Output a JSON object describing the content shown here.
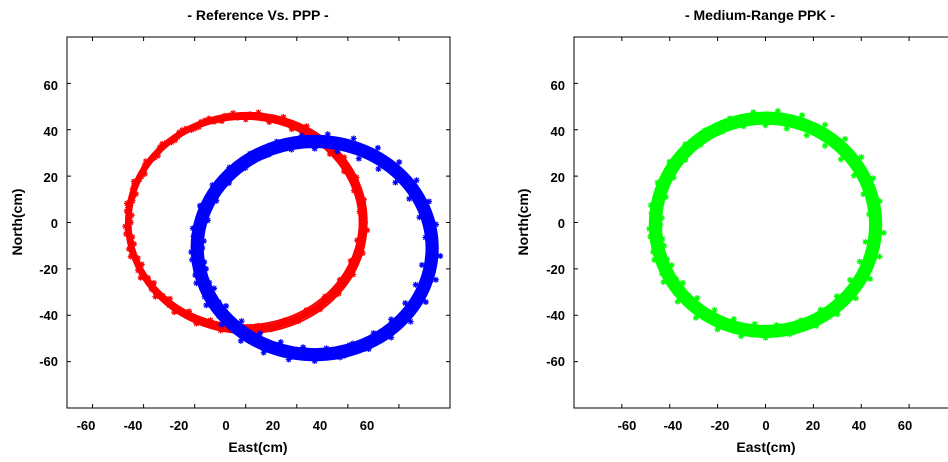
{
  "chart_data": [
    {
      "type": "scatter",
      "title": "- Reference Vs. PPP -",
      "xlabel": "East(cm)",
      "ylabel": "North(cm)",
      "xlim": [
        -70,
        80
      ],
      "ylim": [
        -80,
        80
      ],
      "xticks": [
        "-60",
        "-40",
        "-20",
        "0",
        "20",
        "40",
        "60"
      ],
      "yticks": [
        "60",
        "40",
        "20",
        "0",
        "-20",
        "-40",
        "-60"
      ],
      "grid": false,
      "series": [
        {
          "color": "#ff0000",
          "shape": "ring",
          "center": [
            0,
            0
          ],
          "radius": 46,
          "band": 3,
          "points": [
            [
              0,
              46
            ],
            [
              23,
              40
            ],
            [
              40,
              23
            ],
            [
              46,
              0
            ],
            [
              40,
              -23
            ],
            [
              23,
              -40
            ],
            [
              0,
              -46
            ],
            [
              -23,
              -40
            ],
            [
              -40,
              -23
            ],
            [
              -46,
              0
            ],
            [
              -40,
              23
            ],
            [
              -23,
              40
            ]
          ]
        },
        {
          "color": "#0000ff",
          "shape": "ring",
          "center": [
            27,
            -11
          ],
          "radius": 46,
          "band": 6,
          "points": [
            [
              27,
              35
            ],
            [
              50,
              29
            ],
            [
              67,
              12
            ],
            [
              73,
              -11
            ],
            [
              67,
              -34
            ],
            [
              50,
              -51
            ],
            [
              27,
              -57
            ],
            [
              4,
              -51
            ],
            [
              -13,
              -34
            ],
            [
              -19,
              -11
            ],
            [
              -13,
              12
            ],
            [
              4,
              29
            ]
          ]
        }
      ]
    },
    {
      "type": "scatter",
      "title": "- Medium-Range PPK -",
      "xlabel": "East(cm)",
      "ylabel": "North(cm)",
      "xlim": [
        -80,
        80
      ],
      "ylim": [
        -80,
        80
      ],
      "xticks": [
        "-60",
        "-40",
        "-20",
        "0",
        "20",
        "40",
        "60"
      ],
      "yticks": [
        "60",
        "40",
        "20",
        "0",
        "-20",
        "-40",
        "-60"
      ],
      "grid": false,
      "series": [
        {
          "color": "#00ff00",
          "shape": "ring",
          "center": [
            0,
            -1
          ],
          "radius": 46,
          "band": 6,
          "points": [
            [
              0,
              45
            ],
            [
              23,
              39
            ],
            [
              40,
              22
            ],
            [
              46,
              -1
            ],
            [
              40,
              -24
            ],
            [
              23,
              -41
            ],
            [
              0,
              -47
            ],
            [
              -23,
              -41
            ],
            [
              -40,
              -24
            ],
            [
              -46,
              -1
            ],
            [
              -40,
              22
            ],
            [
              -23,
              39
            ]
          ]
        }
      ]
    }
  ]
}
